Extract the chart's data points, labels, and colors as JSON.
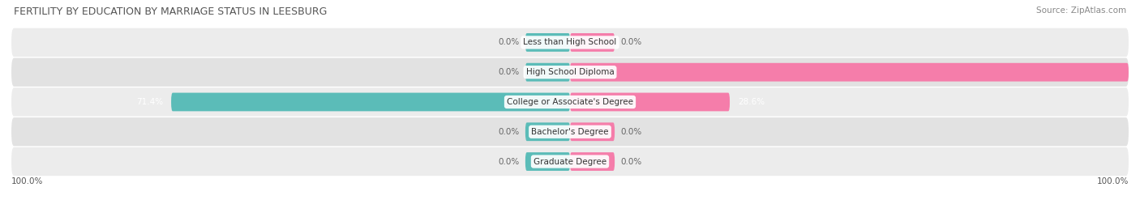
{
  "title": "FERTILITY BY EDUCATION BY MARRIAGE STATUS IN LEESBURG",
  "source": "Source: ZipAtlas.com",
  "categories": [
    "Less than High School",
    "High School Diploma",
    "College or Associate's Degree",
    "Bachelor's Degree",
    "Graduate Degree"
  ],
  "married_values": [
    0.0,
    0.0,
    71.4,
    0.0,
    0.0
  ],
  "unmarried_values": [
    0.0,
    100.0,
    28.6,
    0.0,
    0.0
  ],
  "married_color": "#5bbcb8",
  "unmarried_color": "#f57daa",
  "row_bg_color": "#e2e2e2",
  "row_alt_bg_color": "#ececec",
  "min_bar_pct": 8.0,
  "bar_height": 0.62,
  "xlim": 100.0,
  "axis_label_left": "100.0%",
  "axis_label_right": "100.0%",
  "title_fontsize": 9.0,
  "source_fontsize": 7.5,
  "label_fontsize": 7.5,
  "category_fontsize": 7.5,
  "legend_fontsize": 8.5,
  "background_color": "#ffffff"
}
